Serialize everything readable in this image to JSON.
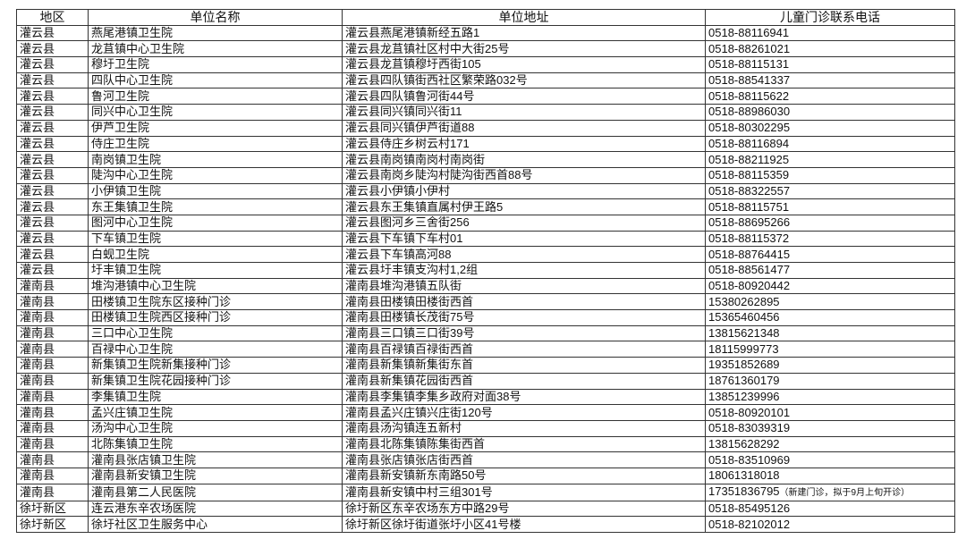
{
  "headers": [
    "地区",
    "单位名称",
    "单位地址",
    "儿童门诊联系电话"
  ],
  "rows": [
    {
      "region": "灌云县",
      "name": "燕尾港镇卫生院",
      "address": "灌云县燕尾港镇新经五路1",
      "phone": "0518-88116941"
    },
    {
      "region": "灌云县",
      "name": "龙苴镇中心卫生院",
      "address": "灌云县龙苴镇社区村中大街25号",
      "phone": "0518-88261021"
    },
    {
      "region": "灌云县",
      "name": "穆圩卫生院",
      "address": "灌云县龙苴镇穆圩西街105",
      "phone": "0518-88115131"
    },
    {
      "region": "灌云县",
      "name": "四队中心卫生院",
      "address": "灌云县四队镇街西社区繁荣路032号",
      "phone": "0518-88541337"
    },
    {
      "region": "灌云县",
      "name": "鲁河卫生院",
      "address": "灌云县四队镇鲁河街44号",
      "phone": "0518-88115622"
    },
    {
      "region": "灌云县",
      "name": "同兴中心卫生院",
      "address": "灌云县同兴镇同兴街11",
      "phone": "0518-88986030"
    },
    {
      "region": "灌云县",
      "name": "伊芦卫生院",
      "address": "灌云县同兴镇伊芦街道88",
      "phone": "0518-80302295"
    },
    {
      "region": "灌云县",
      "name": "侍庄卫生院",
      "address": "灌云县侍庄乡树云村171",
      "phone": "0518-88116894"
    },
    {
      "region": "灌云县",
      "name": "南岗镇卫生院",
      "address": "灌云县南岗镇南岗村南岗街",
      "phone": "0518-88211925"
    },
    {
      "region": "灌云县",
      "name": "陡沟中心卫生院",
      "address": "灌云县南岗乡陡沟村陡沟街西首88号",
      "phone": "0518-88115359"
    },
    {
      "region": "灌云县",
      "name": "小伊镇卫生院",
      "address": "灌云县小伊镇小伊村",
      "phone": "0518-88322557"
    },
    {
      "region": "灌云县",
      "name": "东王集镇卫生院",
      "address": "灌云县东王集镇直属村伊王路5",
      "phone": "0518-88115751"
    },
    {
      "region": "灌云县",
      "name": "图河中心卫生院",
      "address": "灌云县图河乡三舍街256",
      "phone": "0518-88695266"
    },
    {
      "region": "灌云县",
      "name": "下车镇卫生院",
      "address": "灌云县下车镇下车村01",
      "phone": "0518-88115372"
    },
    {
      "region": "灌云县",
      "name": "白蚬卫生院",
      "address": "灌云县下车镇高河88",
      "phone": "0518-88764415"
    },
    {
      "region": "灌云县",
      "name": "圩丰镇卫生院",
      "address": "灌云县圩丰镇支沟村1,2组",
      "phone": "0518-88561477"
    },
    {
      "region": "灌南县",
      "name": "堆沟港镇中心卫生院",
      "address": "灌南县堆沟港镇五队街",
      "phone": "0518-80920442"
    },
    {
      "region": "灌南县",
      "name": "田楼镇卫生院东区接种门诊",
      "address": "灌南县田楼镇田楼街西首",
      "phone": "15380262895"
    },
    {
      "region": "灌南县",
      "name": "田楼镇卫生院西区接种门诊",
      "address": "灌南县田楼镇长茂街75号",
      "phone": "15365460456"
    },
    {
      "region": "灌南县",
      "name": "三口中心卫生院",
      "address": "灌南县三口镇三口街39号",
      "phone": "13815621348"
    },
    {
      "region": "灌南县",
      "name": "百禄中心卫生院",
      "address": "灌南县百禄镇百禄街西首",
      "phone": "18115999773"
    },
    {
      "region": "灌南县",
      "name": "新集镇卫生院新集接种门诊",
      "address": "灌南县新集镇新集街东首",
      "phone": "19351852689"
    },
    {
      "region": "灌南县",
      "name": "新集镇卫生院花园接种门诊",
      "address": "灌南县新集镇花园街西首",
      "phone": "18761360179"
    },
    {
      "region": "灌南县",
      "name": "李集镇卫生院",
      "address": "灌南县李集镇李集乡政府对面38号",
      "phone": "13851239996"
    },
    {
      "region": "灌南县",
      "name": "孟兴庄镇卫生院",
      "address": "灌南县孟兴庄镇兴庄街120号",
      "phone": "0518-80920101"
    },
    {
      "region": "灌南县",
      "name": "汤沟中心卫生院",
      "address": "灌南县汤沟镇连五新村",
      "phone": "0518-83039319"
    },
    {
      "region": "灌南县",
      "name": "北陈集镇卫生院",
      "address": "灌南县北陈集镇陈集街西首",
      "phone": "13815628292"
    },
    {
      "region": "灌南县",
      "name": "灌南县张店镇卫生院",
      "address": "灌南县张店镇张店街西首",
      "phone": "0518-83510969"
    },
    {
      "region": "灌南县",
      "name": "灌南县新安镇卫生院",
      "address": "灌南县新安镇新东南路50号",
      "phone": "18061318018"
    },
    {
      "region": "灌南县",
      "name": "灌南县第二人民医院",
      "address": "灌南县新安镇中村三组301号",
      "phone": "17351836795",
      "note": "（新建门诊，拟于9月上旬开诊）"
    },
    {
      "region": "徐圩新区",
      "name": "连云港东辛农场医院",
      "address": "徐圩新区东辛农场东方中路29号",
      "phone": "0518-85495126"
    },
    {
      "region": "徐圩新区",
      "name": "徐圩社区卫生服务中心",
      "address": "徐圩新区徐圩街道张圩小区41号楼",
      "phone": "0518-82102012"
    }
  ]
}
